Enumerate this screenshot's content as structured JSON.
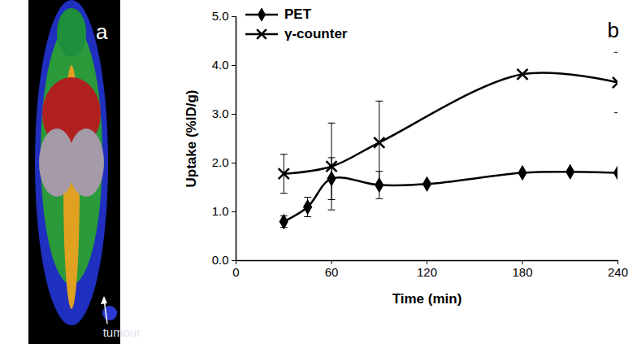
{
  "chart_data": {
    "type": "line",
    "xlabel": "Time (min)",
    "ylabel": "Uptake (%ID/g)",
    "annotations": [
      "a",
      "tumour",
      "b"
    ],
    "xlim": [
      0,
      240
    ],
    "xticks": [
      0,
      60,
      120,
      180,
      240
    ],
    "ylim": [
      0,
      5
    ],
    "yticks": [
      {
        "value": 0,
        "label": "0.0"
      },
      {
        "value": 1,
        "label": "1.0"
      },
      {
        "value": 2,
        "label": "2.0"
      },
      {
        "value": 3,
        "label": "3.0"
      },
      {
        "value": 4,
        "label": "4.0"
      },
      {
        "value": 5,
        "label": "5.0"
      }
    ],
    "grid": false,
    "legend": "top-left",
    "series": [
      {
        "name": "PET",
        "color": "#000000",
        "marker": "diamond",
        "x": [
          30,
          45,
          60,
          90,
          120,
          180,
          210,
          240
        ],
        "values": [
          0.8,
          1.1,
          1.68,
          1.55,
          1.57,
          1.8,
          1.82,
          1.8
        ],
        "errors": [
          0.12,
          0.2,
          0.43,
          0.28,
          null,
          null,
          null,
          null
        ]
      },
      {
        "name": "γ-counter",
        "color": "#000000",
        "marker": "cross",
        "x": [
          30,
          60,
          90,
          180,
          240
        ],
        "values": [
          1.78,
          1.93,
          2.42,
          3.82,
          3.65
        ],
        "errors": [
          0.4,
          0.89,
          0.85,
          null,
          0.62
        ]
      }
    ]
  }
}
